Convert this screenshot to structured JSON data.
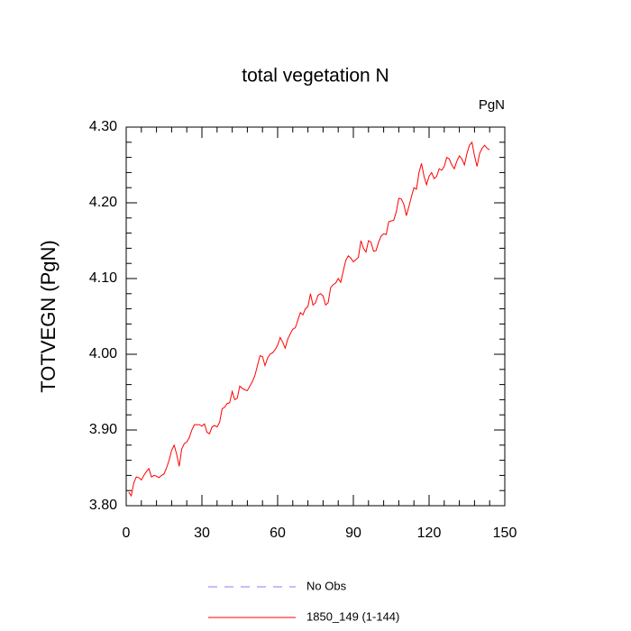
{
  "chart_data": {
    "type": "line",
    "title": "total vegetation N",
    "subtitle": "PgN",
    "y_label": "TOTVEGN  (PgN)",
    "x": [
      1,
      2,
      3,
      4,
      5,
      6,
      7,
      8,
      9,
      10,
      11,
      12,
      13,
      14,
      15,
      16,
      17,
      18,
      19,
      20,
      21,
      22,
      23,
      24,
      25,
      26,
      27,
      28,
      29,
      30,
      31,
      32,
      33,
      34,
      35,
      36,
      37,
      38,
      39,
      40,
      41,
      42,
      43,
      44,
      45,
      46,
      47,
      48,
      49,
      50,
      51,
      52,
      53,
      54,
      55,
      56,
      57,
      58,
      59,
      60,
      61,
      62,
      63,
      64,
      65,
      66,
      67,
      68,
      69,
      70,
      71,
      72,
      73,
      74,
      75,
      76,
      77,
      78,
      79,
      80,
      81,
      82,
      83,
      84,
      85,
      86,
      87,
      88,
      89,
      90,
      91,
      92,
      93,
      94,
      95,
      96,
      97,
      98,
      99,
      100,
      101,
      102,
      103,
      104,
      105,
      106,
      107,
      108,
      109,
      110,
      111,
      112,
      113,
      114,
      115,
      116,
      117,
      118,
      119,
      120,
      121,
      122,
      123,
      124,
      125,
      126,
      127,
      128,
      129,
      130,
      131,
      132,
      133,
      134,
      135,
      136,
      137,
      138,
      139,
      140,
      141,
      142,
      143,
      144
    ],
    "series": [
      {
        "name": "1850_149 (1-144)",
        "color": "#ff0000",
        "values": [
          3.818,
          3.813,
          3.83,
          3.838,
          3.837,
          3.834,
          3.84,
          3.845,
          3.849,
          3.838,
          3.84,
          3.839,
          3.837,
          3.84,
          3.842,
          3.85,
          3.86,
          3.873,
          3.88,
          3.868,
          3.852,
          3.875,
          3.882,
          3.884,
          3.89,
          3.9,
          3.907,
          3.907,
          3.907,
          3.905,
          3.908,
          3.897,
          3.895,
          3.904,
          3.906,
          3.904,
          3.91,
          3.928,
          3.93,
          3.935,
          3.936,
          3.951,
          3.94,
          3.942,
          3.958,
          3.955,
          3.953,
          3.952,
          3.958,
          3.964,
          3.972,
          3.985,
          3.998,
          3.997,
          3.985,
          3.995,
          4.0,
          4.002,
          4.006,
          4.012,
          4.022,
          4.016,
          4.008,
          4.02,
          4.027,
          4.033,
          4.035,
          4.045,
          4.055,
          4.052,
          4.06,
          4.063,
          4.08,
          4.065,
          4.068,
          4.078,
          4.08,
          4.077,
          4.065,
          4.068,
          4.088,
          4.092,
          4.094,
          4.1,
          4.095,
          4.11,
          4.124,
          4.13,
          4.127,
          4.122,
          4.125,
          4.128,
          4.15,
          4.14,
          4.135,
          4.15,
          4.148,
          4.136,
          4.137,
          4.148,
          4.156,
          4.159,
          4.158,
          4.175,
          4.176,
          4.177,
          4.188,
          4.206,
          4.205,
          4.198,
          4.183,
          4.195,
          4.208,
          4.22,
          4.218,
          4.24,
          4.252,
          4.235,
          4.224,
          4.235,
          4.24,
          4.232,
          4.235,
          4.245,
          4.243,
          4.248,
          4.26,
          4.258,
          4.25,
          4.245,
          4.255,
          4.262,
          4.258,
          4.25,
          4.265,
          4.276,
          4.28,
          4.262,
          4.248,
          4.265,
          4.272,
          4.276,
          4.272,
          4.27
        ]
      }
    ],
    "legend_entries": [
      {
        "name": "No Obs",
        "color": "#8080ff",
        "dashed": true
      },
      {
        "name": "1850_149 (1-144)",
        "color": "#ff0000",
        "dashed": false
      }
    ],
    "xlim": [
      0,
      150
    ],
    "xticks": [
      0,
      30,
      60,
      90,
      120,
      150
    ],
    "ylim": [
      3.8,
      4.3
    ],
    "yticks": [
      {
        "value": 3.8,
        "label": "3.80"
      },
      {
        "value": 3.9,
        "label": "3.90"
      },
      {
        "value": 4.0,
        "label": "4.00"
      },
      {
        "value": 4.1,
        "label": "4.10"
      },
      {
        "value": 4.2,
        "label": "4.20"
      },
      {
        "value": 4.3,
        "label": "4.30"
      }
    ]
  }
}
